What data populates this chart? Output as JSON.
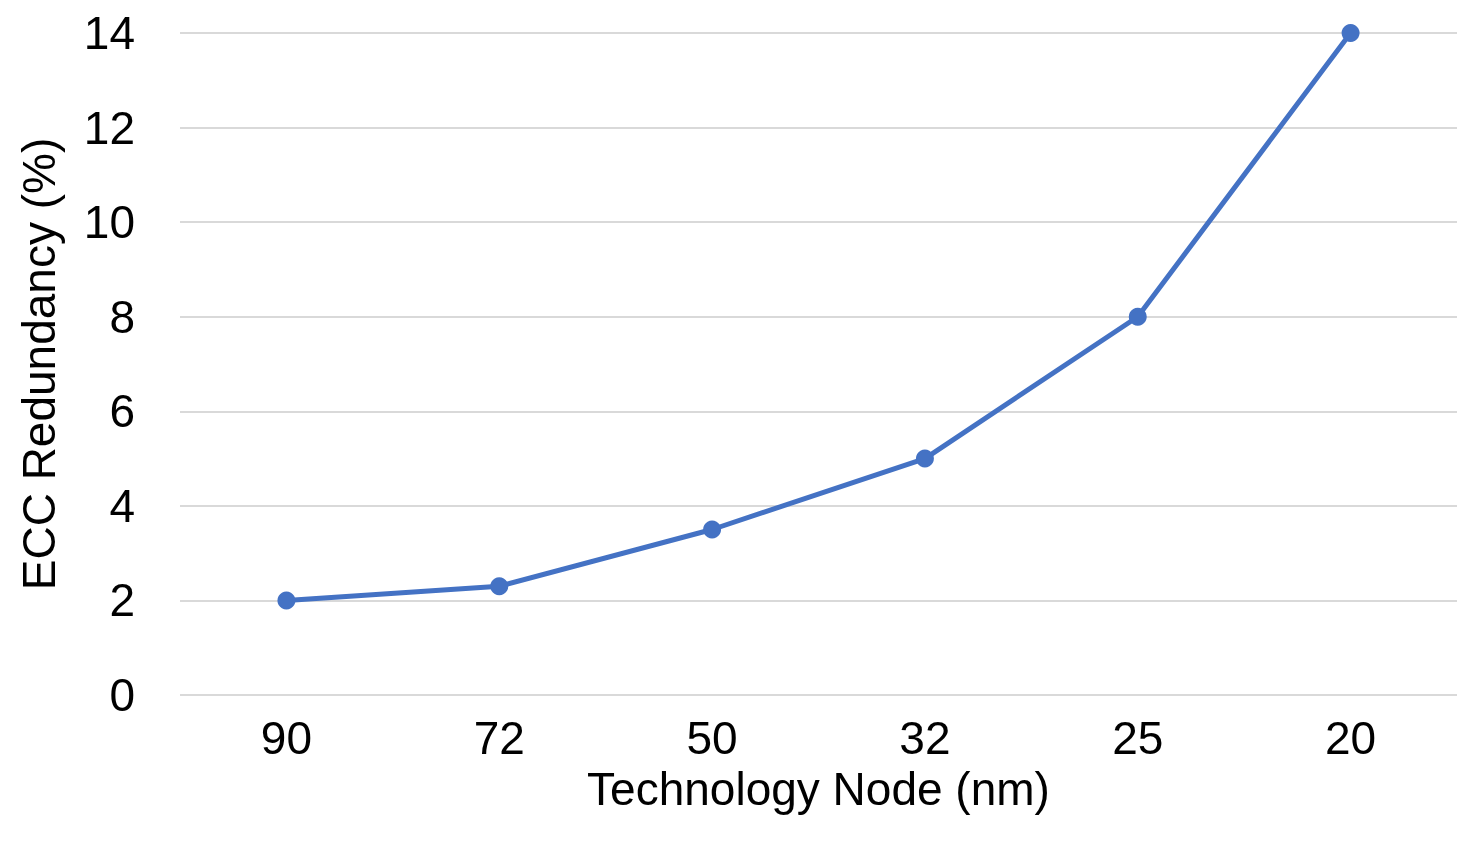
{
  "chart_data": {
    "type": "line",
    "xlabel": "Technology Node (nm)",
    "ylabel": "ECC Redundancy (%)",
    "categories": [
      "90",
      "72",
      "50",
      "32",
      "25",
      "20"
    ],
    "series": [
      {
        "color": "#4472c4",
        "values": [
          2,
          2.3,
          3.5,
          5,
          8,
          14
        ]
      }
    ],
    "ylim": [
      0,
      14
    ],
    "yticks": [
      0,
      2,
      4,
      6,
      8,
      10,
      12,
      14
    ],
    "grid": "y",
    "marker": "circle",
    "line_style": "solid"
  }
}
